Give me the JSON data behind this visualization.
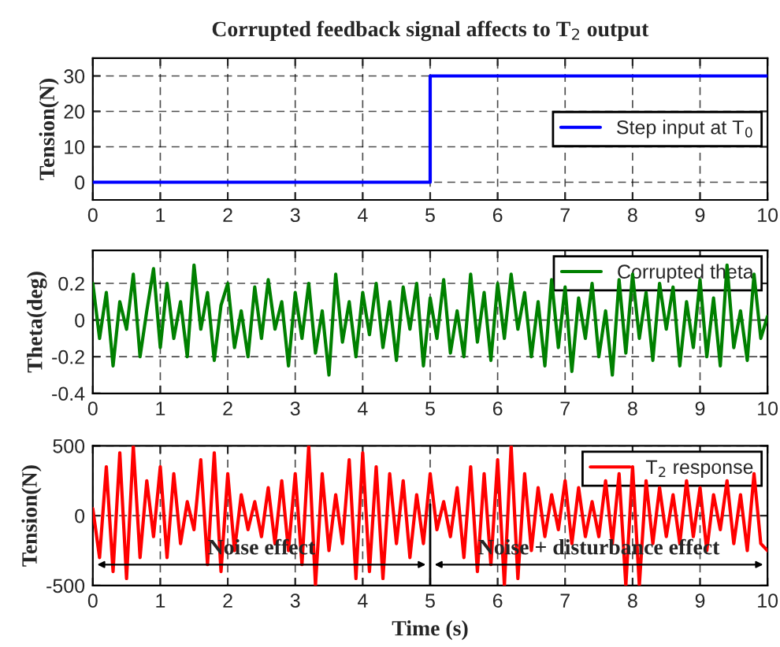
{
  "chart_data": [
    {
      "type": "line",
      "title": "Corrupted feedback signal affects to T$_{2}$ output",
      "ylabel": "Tension(N)",
      "xlim": [
        0,
        10
      ],
      "xticks": [
        0,
        1,
        2,
        3,
        4,
        5,
        6,
        7,
        8,
        9,
        10
      ],
      "ylim": [
        -5,
        35
      ],
      "yticks": [
        0,
        10,
        20,
        30
      ],
      "grid": true,
      "legend": "right",
      "series": [
        {
          "name": "Step input at T$_{0}$",
          "color": "#0000ff",
          "x": [
            0,
            5,
            5,
            10
          ],
          "values": [
            0,
            0,
            30,
            30
          ]
        }
      ]
    },
    {
      "type": "line",
      "ylabel": "Theta(deg)",
      "xlim": [
        0,
        10
      ],
      "xticks": [
        0,
        1,
        2,
        3,
        4,
        5,
        6,
        7,
        8,
        9,
        10
      ],
      "ylim": [
        -0.4,
        0.38
      ],
      "yticks": [
        -0.4,
        -0.2,
        0,
        0.2
      ],
      "grid": true,
      "legend": "top right",
      "series": [
        {
          "name": "Corrupted theta",
          "color": "#008000",
          "x": [
            0,
            0.1,
            0.2,
            0.3,
            0.4,
            0.5,
            0.6,
            0.7,
            0.8,
            0.9,
            1,
            1.1,
            1.2,
            1.3,
            1.4,
            1.5,
            1.6,
            1.7,
            1.8,
            1.9,
            2,
            2.1,
            2.2,
            2.3,
            2.4,
            2.5,
            2.6,
            2.7,
            2.8,
            2.9,
            3,
            3.1,
            3.2,
            3.3,
            3.4,
            3.5,
            3.6,
            3.7,
            3.8,
            3.9,
            4,
            4.1,
            4.2,
            4.3,
            4.4,
            4.5,
            4.6,
            4.7,
            4.8,
            4.9,
            5,
            5.1,
            5.2,
            5.3,
            5.4,
            5.5,
            5.6,
            5.7,
            5.8,
            5.9,
            6,
            6.1,
            6.2,
            6.3,
            6.4,
            6.5,
            6.6,
            6.7,
            6.8,
            6.9,
            7,
            7.1,
            7.2,
            7.3,
            7.4,
            7.5,
            7.6,
            7.7,
            7.8,
            7.9,
            8,
            8.1,
            8.2,
            8.3,
            8.4,
            8.5,
            8.6,
            8.7,
            8.8,
            8.9,
            9,
            9.1,
            9.2,
            9.3,
            9.4,
            9.5,
            9.6,
            9.7,
            9.8,
            9.9,
            10
          ],
          "values": [
            0.2,
            -0.1,
            0.15,
            -0.25,
            0.1,
            -0.05,
            0.25,
            -0.2,
            0.05,
            0.28,
            -0.15,
            0.2,
            -0.1,
            0.1,
            -0.2,
            0.3,
            -0.05,
            0.15,
            -0.22,
            0.08,
            0.2,
            -0.15,
            0.05,
            -0.2,
            0.18,
            -0.1,
            0.22,
            -0.05,
            0.1,
            -0.25,
            0.15,
            -0.1,
            0.2,
            -0.18,
            0.05,
            -0.3,
            0.25,
            -0.12,
            0.1,
            -0.2,
            0.15,
            -0.08,
            0.2,
            -0.15,
            0.1,
            -0.22,
            0.18,
            -0.05,
            0.2,
            -0.25,
            0.12,
            -0.1,
            0.22,
            -0.18,
            0.05,
            -0.2,
            0.25,
            -0.12,
            0.15,
            -0.22,
            0.2,
            -0.1,
            0.25,
            -0.05,
            0.15,
            -0.2,
            0.1,
            -0.25,
            0.22,
            -0.15,
            0.18,
            -0.28,
            0.12,
            -0.1,
            0.2,
            -0.2,
            0.05,
            -0.3,
            0.22,
            -0.18,
            0.25,
            -0.1,
            0.15,
            -0.22,
            0.2,
            -0.05,
            0.18,
            -0.25,
            0.1,
            -0.15,
            0.22,
            -0.2,
            0.12,
            -0.25,
            0.3,
            -0.15,
            0.05,
            -0.22,
            0.25,
            -0.1,
            0.02
          ]
        }
      ]
    },
    {
      "type": "line",
      "ylabel": "Tension(N)",
      "xlabel": "Time (s)",
      "xlim": [
        0,
        10
      ],
      "xticks": [
        0,
        1,
        2,
        3,
        4,
        5,
        6,
        7,
        8,
        9,
        10
      ],
      "ylim": [
        -500,
        500
      ],
      "yticks": [
        -500,
        0,
        500
      ],
      "grid": true,
      "legend": "top right",
      "ref_lines": [
        {
          "axis": "x",
          "value": 5,
          "color": "#000000"
        }
      ],
      "annotations": [
        "Noise effect",
        "Noise + disturbance effect"
      ],
      "series": [
        {
          "name": "T$_{2}$ response",
          "color": "#ff0000",
          "x": [
            0,
            0.1,
            0.2,
            0.3,
            0.4,
            0.5,
            0.6,
            0.7,
            0.8,
            0.9,
            1,
            1.1,
            1.2,
            1.3,
            1.4,
            1.5,
            1.6,
            1.7,
            1.8,
            1.9,
            2,
            2.1,
            2.2,
            2.3,
            2.4,
            2.5,
            2.6,
            2.7,
            2.8,
            2.9,
            3,
            3.1,
            3.2,
            3.3,
            3.4,
            3.5,
            3.6,
            3.7,
            3.8,
            3.9,
            4,
            4.1,
            4.2,
            4.3,
            4.4,
            4.5,
            4.6,
            4.7,
            4.8,
            4.9,
            5,
            5.1,
            5.2,
            5.3,
            5.4,
            5.5,
            5.6,
            5.7,
            5.8,
            5.9,
            6,
            6.1,
            6.2,
            6.3,
            6.4,
            6.5,
            6.6,
            6.7,
            6.8,
            6.9,
            7,
            7.1,
            7.2,
            7.3,
            7.4,
            7.5,
            7.6,
            7.7,
            7.8,
            7.9,
            8,
            8.1,
            8.2,
            8.3,
            8.4,
            8.5,
            8.6,
            8.7,
            8.8,
            8.9,
            9,
            9.1,
            9.2,
            9.3,
            9.4,
            9.5,
            9.6,
            9.7,
            9.8,
            9.9,
            10
          ],
          "values": [
            50,
            -300,
            350,
            -400,
            450,
            -450,
            500,
            -300,
            250,
            -150,
            350,
            -300,
            300,
            -200,
            100,
            -100,
            400,
            -350,
            450,
            -400,
            300,
            -250,
            150,
            -100,
            100,
            -150,
            200,
            -200,
            250,
            -250,
            300,
            -350,
            500,
            -500,
            300,
            -250,
            150,
            -200,
            400,
            -450,
            450,
            -400,
            350,
            -450,
            300,
            -200,
            250,
            -300,
            150,
            -200,
            300,
            -100,
            100,
            -150,
            200,
            -300,
            350,
            -400,
            300,
            -350,
            400,
            -500,
            500,
            -450,
            300,
            -250,
            200,
            -150,
            150,
            -100,
            250,
            -200,
            200,
            -150,
            100,
            -150,
            250,
            -200,
            300,
            -500,
            350,
            -500,
            250,
            -200,
            200,
            -150,
            150,
            -200,
            250,
            -150,
            200,
            -250,
            150,
            -100,
            250,
            -200,
            150,
            -250,
            300,
            -200,
            -250
          ]
        }
      ]
    }
  ]
}
